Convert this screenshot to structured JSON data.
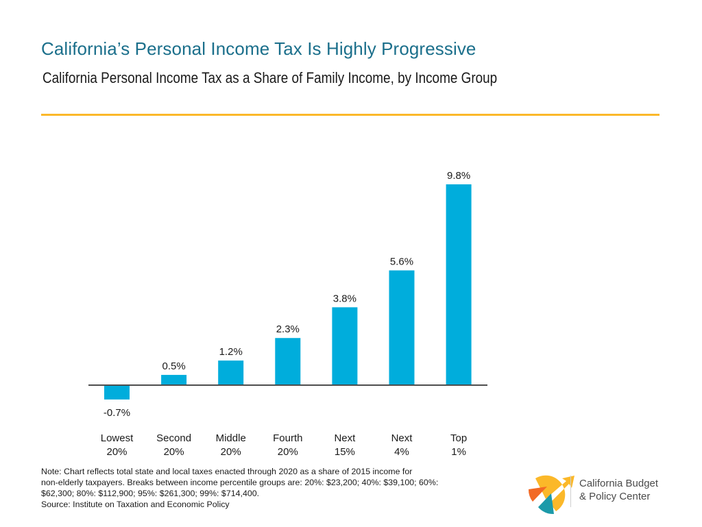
{
  "header": {
    "title": "California’s Personal Income Tax Is Highly Progressive",
    "subtitle": "California Personal Income Tax as a Share of Family Income, by Income Group"
  },
  "colors": {
    "title": "#1b6f8b",
    "rule": "#fbb829",
    "bar": "#00addc",
    "axis": "#4d4d4d",
    "logo_yellow": "#fbb829",
    "logo_orange": "#f26a25",
    "logo_teal": "#1c9aa9"
  },
  "chart_data": {
    "type": "bar",
    "title": "California Personal Income Tax as a Share of Family Income, by Income Group",
    "xlabel": "",
    "ylabel": "",
    "categories": [
      [
        "Lowest",
        "20%"
      ],
      [
        "Second",
        "20%"
      ],
      [
        "Middle",
        "20%"
      ],
      [
        "Fourth",
        "20%"
      ],
      [
        "Next",
        "15%"
      ],
      [
        "Next",
        "4%"
      ],
      [
        "Top",
        "1%"
      ]
    ],
    "values": [
      -0.7,
      0.5,
      1.2,
      2.3,
      3.8,
      5.6,
      9.8
    ],
    "labels": [
      "-0.7%",
      "0.5%",
      "1.2%",
      "2.3%",
      "3.8%",
      "5.6%",
      "9.8%"
    ],
    "unit": "%",
    "ylim": [
      -1,
      10
    ],
    "grid": false,
    "legend": "none"
  },
  "footer": {
    "note_lines": [
      "Note: Chart reflects total state and local taxes enacted through 2020 as a share of 2015 income for",
      "non-elderly taxpayers. Breaks between income percentile groups are: 20%: $23,200; 40%: $39,100; 60%:",
      "$62,300; 80%: $112,900; 95%: $261,300; 99%: $714,400.",
      "Source: Institute on Taxation and Economic Policy"
    ],
    "logo": {
      "icon": "california-budget-logo-icon",
      "line1": "California Budget",
      "line2": "& Policy Center"
    }
  }
}
